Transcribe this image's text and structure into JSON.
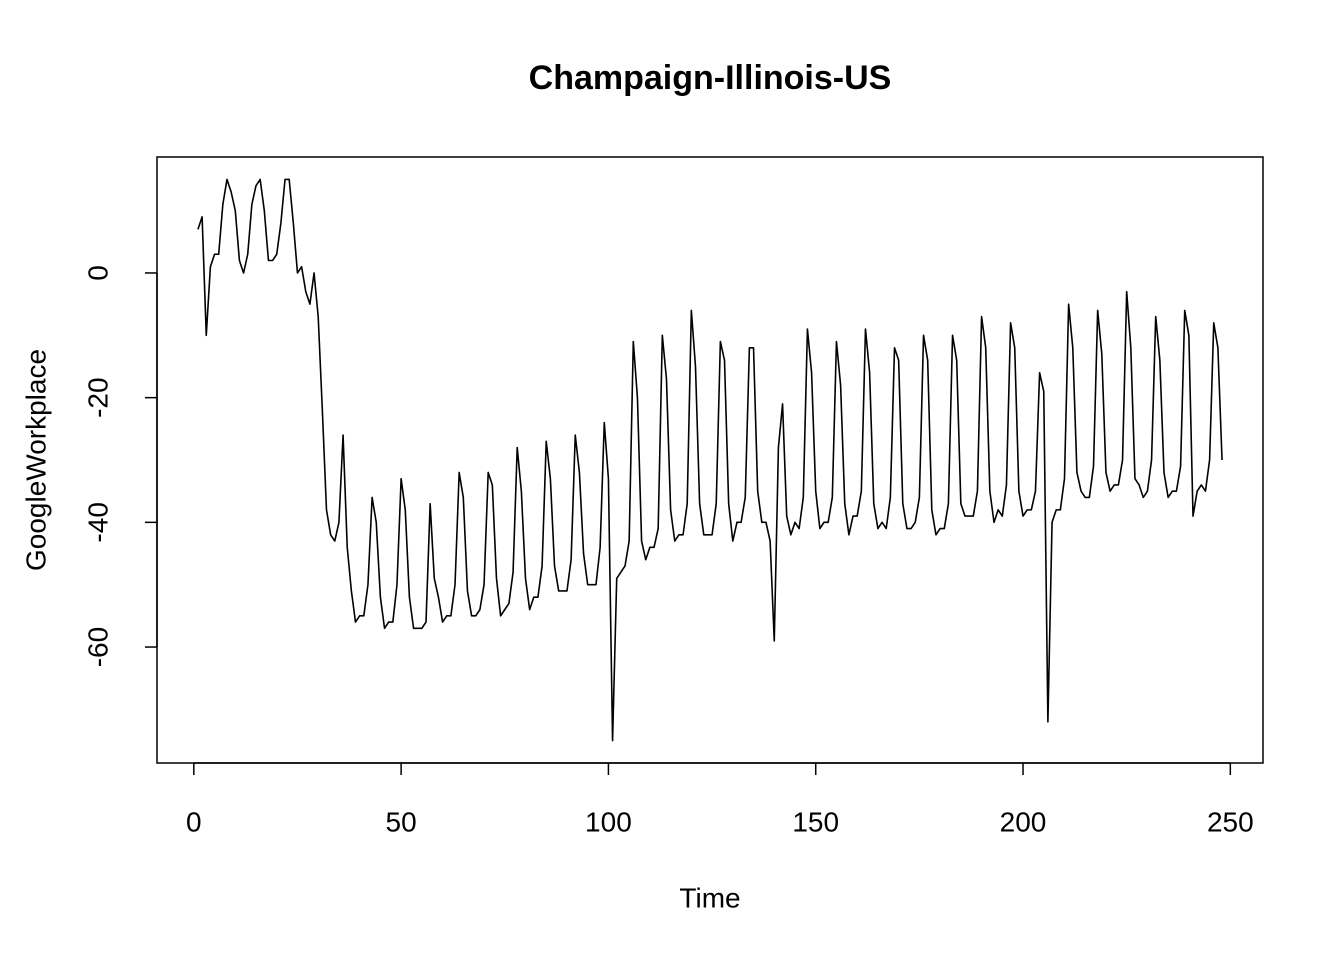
{
  "chart_data": {
    "type": "line",
    "title": "Champaign-Illinois-US",
    "x_label": "Time",
    "y_label": "GoogleWorkplace",
    "color": "#000000",
    "xlim": [
      -8.88,
      257.88
    ],
    "ylim": [
      -78.6,
      18.6
    ],
    "xticks": [
      0,
      50,
      100,
      150,
      200,
      250
    ],
    "yticks": [
      -60,
      -40,
      -20,
      0
    ],
    "x": [
      1,
      2,
      3,
      4,
      5,
      6,
      7,
      8,
      9,
      10,
      11,
      12,
      13,
      14,
      15,
      16,
      17,
      18,
      19,
      20,
      21,
      22,
      23,
      24,
      25,
      26,
      27,
      28,
      29,
      30,
      31,
      32,
      33,
      34,
      35,
      36,
      37,
      38,
      39,
      40,
      41,
      42,
      43,
      44,
      45,
      46,
      47,
      48,
      49,
      50,
      51,
      52,
      53,
      54,
      55,
      56,
      57,
      58,
      59,
      60,
      61,
      62,
      63,
      64,
      65,
      66,
      67,
      68,
      69,
      70,
      71,
      72,
      73,
      74,
      75,
      76,
      77,
      78,
      79,
      80,
      81,
      82,
      83,
      84,
      85,
      86,
      87,
      88,
      89,
      90,
      91,
      92,
      93,
      94,
      95,
      96,
      97,
      98,
      99,
      100,
      101,
      102,
      103,
      104,
      105,
      106,
      107,
      108,
      109,
      110,
      111,
      112,
      113,
      114,
      115,
      116,
      117,
      118,
      119,
      120,
      121,
      122,
      123,
      124,
      125,
      126,
      127,
      128,
      129,
      130,
      131,
      132,
      133,
      134,
      135,
      136,
      137,
      138,
      139,
      140,
      141,
      142,
      143,
      144,
      145,
      146,
      147,
      148,
      149,
      150,
      151,
      152,
      153,
      154,
      155,
      156,
      157,
      158,
      159,
      160,
      161,
      162,
      163,
      164,
      165,
      166,
      167,
      168,
      169,
      170,
      171,
      172,
      173,
      174,
      175,
      176,
      177,
      178,
      179,
      180,
      181,
      182,
      183,
      184,
      185,
      186,
      187,
      188,
      189,
      190,
      191,
      192,
      193,
      194,
      195,
      196,
      197,
      198,
      199,
      200,
      201,
      202,
      203,
      204,
      205,
      206,
      207,
      208,
      209,
      210,
      211,
      212,
      213,
      214,
      215,
      216,
      217,
      218,
      219,
      220,
      221,
      222,
      223,
      224,
      225,
      226,
      227,
      228,
      229,
      230,
      231,
      232,
      233,
      234,
      235,
      236,
      237,
      238,
      239,
      240,
      241,
      242,
      243,
      244,
      245,
      246,
      247,
      248
    ],
    "values": [
      7,
      9,
      -10,
      1,
      3,
      3,
      11,
      15,
      13,
      10,
      2,
      0,
      3,
      11,
      14,
      15,
      10,
      2,
      2,
      3,
      8,
      15,
      15,
      8,
      0,
      1,
      -3,
      -5,
      0,
      -7,
      -22,
      -38,
      -42,
      -43,
      -40,
      -26,
      -44,
      -51,
      -56,
      -55,
      -55,
      -50,
      -36,
      -40,
      -52,
      -57,
      -56,
      -56,
      -50,
      -33,
      -38,
      -52,
      -57,
      -57,
      -57,
      -56,
      -37,
      -49,
      -52,
      -56,
      -55,
      -55,
      -50,
      -32,
      -36,
      -51,
      -55,
      -55,
      -54,
      -50,
      -32,
      -34,
      -49,
      -55,
      -54,
      -53,
      -48,
      -28,
      -35,
      -49,
      -54,
      -52,
      -52,
      -47,
      -27,
      -33,
      -47,
      -51,
      -51,
      -51,
      -46,
      -26,
      -32,
      -45,
      -50,
      -50,
      -50,
      -44,
      -24,
      -33,
      -75,
      -49,
      -48,
      -47,
      -43,
      -11,
      -20,
      -43,
      -46,
      -44,
      -44,
      -41,
      -10,
      -17,
      -38,
      -43,
      -42,
      -42,
      -37,
      -6,
      -15,
      -37,
      -42,
      -42,
      -42,
      -37,
      -11,
      -14,
      -37,
      -43,
      -40,
      -40,
      -36,
      -12,
      -12,
      -35,
      -40,
      -40,
      -43,
      -59,
      -28,
      -21,
      -39,
      -42,
      -40,
      -41,
      -36,
      -9,
      -16,
      -35,
      -41,
      -40,
      -40,
      -36,
      -11,
      -18,
      -37,
      -42,
      -39,
      -39,
      -35,
      -9,
      -16,
      -37,
      -41,
      -40,
      -41,
      -36,
      -12,
      -14,
      -37,
      -41,
      -41,
      -40,
      -36,
      -10,
      -14,
      -38,
      -42,
      -41,
      -41,
      -37,
      -10,
      -14,
      -37,
      -39,
      -39,
      -39,
      -35,
      -7,
      -12,
      -35,
      -40,
      -38,
      -39,
      -34,
      -8,
      -12,
      -35,
      -39,
      -38,
      -38,
      -35,
      -16,
      -19,
      -72,
      -40,
      -38,
      -38,
      -33,
      -5,
      -12,
      -32,
      -35,
      -36,
      -36,
      -31,
      -6,
      -13,
      -32,
      -35,
      -34,
      -34,
      -30,
      -3,
      -12,
      -33,
      -34,
      -36,
      -35,
      -30,
      -7,
      -14,
      -32,
      -36,
      -35,
      -35,
      -31,
      -6,
      -10,
      -39,
      -35,
      -34,
      -35,
      -30,
      -8,
      -12,
      -30
    ]
  }
}
